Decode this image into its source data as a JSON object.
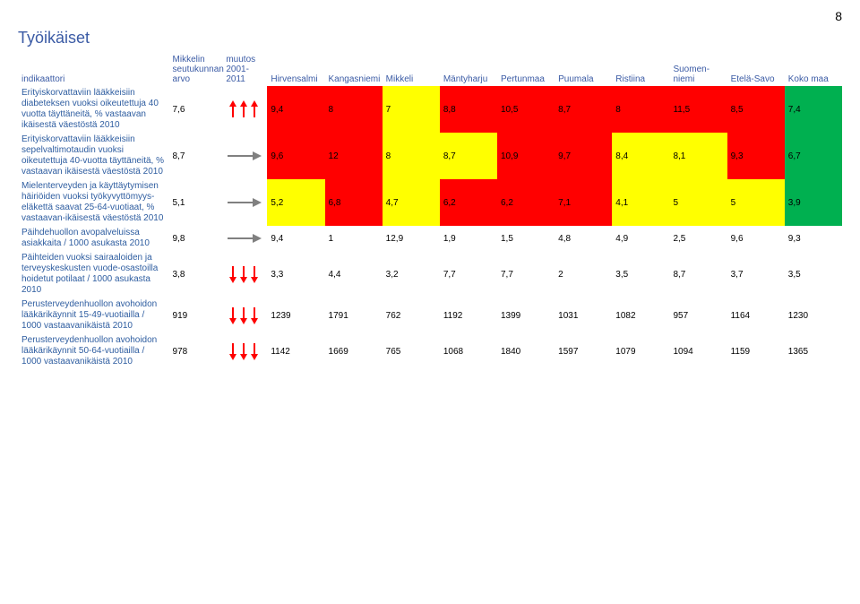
{
  "page_number": "8",
  "title": "Työikäiset",
  "colors": {
    "red": "#ff0000",
    "yellow": "#ffff00",
    "green": "#00b050",
    "heading": "#3b5ba5",
    "indicator": "#2e5da0",
    "text": "#000000",
    "arrow_red": "#ff0000",
    "arrow_gray": "#808080"
  },
  "table": {
    "headers": [
      "indikaattori",
      "Mikkelin seutukunnan arvo",
      "muutos 2001-2011",
      "Hirvensalmi",
      "Kangasniemi",
      "Mikkeli",
      "Mäntyharju",
      "Pertunmaa",
      "Puumala",
      "Ristiina",
      "Suomen-niemi",
      "Etelä-Savo",
      "Koko maa"
    ],
    "rows": [
      {
        "indicator": "Erityiskorvattaviin lääkkeisiin diabeteksen vuoksi oikeutettuja 40 vuotta täyttäneitä, % vastaavan ikäisestä väestöstä 2010",
        "arvo": "7,6",
        "trend": "up3-red",
        "cells": [
          {
            "v": "9,4",
            "c": "red"
          },
          {
            "v": "8",
            "c": "red"
          },
          {
            "v": "7",
            "c": "yellow"
          },
          {
            "v": "8,8",
            "c": "red"
          },
          {
            "v": "10,5",
            "c": "red"
          },
          {
            "v": "8,7",
            "c": "red"
          },
          {
            "v": "8",
            "c": "red"
          },
          {
            "v": "11,5",
            "c": "red"
          },
          {
            "v": "8,5",
            "c": "red"
          },
          {
            "v": "7,4",
            "c": "green"
          }
        ]
      },
      {
        "indicator": "Erityiskorvattaviin lääkkeisiin sepelvaltimotaudin vuoksi oikeutettuja 40-vuotta täyttäneitä, % vastaavan ikäisestä väestöstä 2010",
        "arvo": "8,7",
        "trend": "flat-gray",
        "cells": [
          {
            "v": "9,6",
            "c": "red"
          },
          {
            "v": "12",
            "c": "red"
          },
          {
            "v": "8",
            "c": "yellow"
          },
          {
            "v": "8,7",
            "c": "yellow"
          },
          {
            "v": "10,9",
            "c": "red"
          },
          {
            "v": "9,7",
            "c": "red"
          },
          {
            "v": "8,4",
            "c": "yellow"
          },
          {
            "v": "8,1",
            "c": "yellow"
          },
          {
            "v": "9,3",
            "c": "red"
          },
          {
            "v": "6,7",
            "c": "green"
          }
        ]
      },
      {
        "indicator": "Mielenterveyden ja käyttäytymisen häiriöiden vuoksi työkyvyttömyys-eläkettä saavat 25-64-vuotiaat, % vastaavan-ikäisestä väestöstä 2010",
        "arvo": "5,1",
        "trend": "flat-gray",
        "cells": [
          {
            "v": "5,2",
            "c": "yellow"
          },
          {
            "v": "6,8",
            "c": "red"
          },
          {
            "v": "4,7",
            "c": "yellow"
          },
          {
            "v": "6,2",
            "c": "red"
          },
          {
            "v": "6,2",
            "c": "red"
          },
          {
            "v": "7,1",
            "c": "red"
          },
          {
            "v": "4,1",
            "c": "yellow"
          },
          {
            "v": "5",
            "c": "yellow"
          },
          {
            "v": "5",
            "c": "yellow"
          },
          {
            "v": "3,9",
            "c": "green"
          }
        ]
      },
      {
        "indicator": "Päihdehuollon avopalveluissa asiakkaita / 1000 asukasta 2010",
        "arvo": "9,8",
        "trend": "flat-gray",
        "cells": [
          {
            "v": "9,4",
            "c": "plain"
          },
          {
            "v": "1",
            "c": "plain"
          },
          {
            "v": "12,9",
            "c": "plain"
          },
          {
            "v": "1,9",
            "c": "plain"
          },
          {
            "v": "1,5",
            "c": "plain"
          },
          {
            "v": "4,8",
            "c": "plain"
          },
          {
            "v": "4,9",
            "c": "plain"
          },
          {
            "v": "2,5",
            "c": "plain"
          },
          {
            "v": "9,6",
            "c": "plain"
          },
          {
            "v": "9,3",
            "c": "plain"
          }
        ]
      },
      {
        "indicator": "Päihteiden vuoksi sairaaloiden ja terveyskeskusten vuode-osastoilla hoidetut potilaat / 1000 asukasta 2010",
        "arvo": "3,8",
        "trend": "down3-red",
        "cells": [
          {
            "v": "3,3",
            "c": "plain"
          },
          {
            "v": "4,4",
            "c": "plain"
          },
          {
            "v": "3,2",
            "c": "plain"
          },
          {
            "v": "7,7",
            "c": "plain"
          },
          {
            "v": "7,7",
            "c": "plain"
          },
          {
            "v": "2",
            "c": "plain"
          },
          {
            "v": "3,5",
            "c": "plain"
          },
          {
            "v": "8,7",
            "c": "plain"
          },
          {
            "v": "3,7",
            "c": "plain"
          },
          {
            "v": "3,5",
            "c": "plain"
          }
        ]
      },
      {
        "indicator": "Perusterveydenhuollon avohoidon lääkärikäynnit 15-49-vuotiailla / 1000 vastaavanikäistä 2010",
        "arvo": "919",
        "trend": "down3-red",
        "cells": [
          {
            "v": "1239",
            "c": "plain"
          },
          {
            "v": "1791",
            "c": "plain"
          },
          {
            "v": "762",
            "c": "plain"
          },
          {
            "v": "1192",
            "c": "plain"
          },
          {
            "v": "1399",
            "c": "plain"
          },
          {
            "v": "1031",
            "c": "plain"
          },
          {
            "v": "1082",
            "c": "plain"
          },
          {
            "v": "957",
            "c": "plain"
          },
          {
            "v": "1164",
            "c": "plain"
          },
          {
            "v": "1230",
            "c": "plain"
          }
        ]
      },
      {
        "indicator": "Perusterveydenhuollon avohoidon lääkärikäynnit 50-64-vuotiailla / 1000 vastaavanikäistä 2010",
        "arvo": "978",
        "trend": "down3-red",
        "cells": [
          {
            "v": "1142",
            "c": "plain"
          },
          {
            "v": "1669",
            "c": "plain"
          },
          {
            "v": "765",
            "c": "plain"
          },
          {
            "v": "1068",
            "c": "plain"
          },
          {
            "v": "1840",
            "c": "plain"
          },
          {
            "v": "1597",
            "c": "plain"
          },
          {
            "v": "1079",
            "c": "plain"
          },
          {
            "v": "1094",
            "c": "plain"
          },
          {
            "v": "1159",
            "c": "plain"
          },
          {
            "v": "1365",
            "c": "plain"
          }
        ]
      }
    ]
  },
  "trend_icons": {
    "up3-red": {
      "count": 3,
      "dir": "up",
      "color": "#ff0000"
    },
    "down3-red": {
      "count": 3,
      "dir": "down",
      "color": "#ff0000"
    },
    "flat-gray": {
      "count": 1,
      "dir": "flat",
      "color": "#808080"
    }
  }
}
